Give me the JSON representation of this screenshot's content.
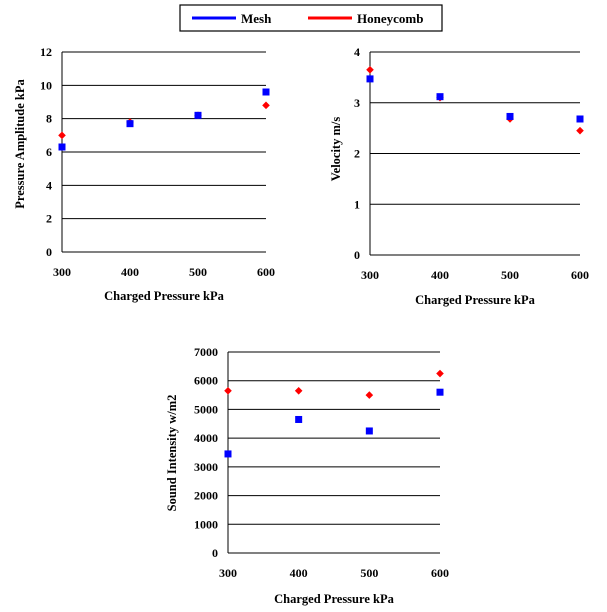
{
  "legend": [
    {
      "name": "Mesh",
      "color": "#0000ff",
      "marker": "square"
    },
    {
      "name": "Honeycomb",
      "color": "#ff0000",
      "marker": "diamond"
    }
  ],
  "chart_data": [
    {
      "type": "scatter",
      "title": "",
      "xlabel": "Charged Pressure kPa",
      "ylabel": "Pressure Amplitude kPa",
      "xlim": [
        300,
        600
      ],
      "ylim": [
        0,
        12
      ],
      "xticks": [
        300,
        400,
        500,
        600
      ],
      "yticks": [
        0,
        2,
        4,
        6,
        8,
        10,
        12
      ],
      "grid": "horizontal",
      "series": [
        {
          "name": "Mesh",
          "x": [
            300,
            400,
            500,
            600
          ],
          "y": [
            6.3,
            7.7,
            8.2,
            9.6
          ]
        },
        {
          "name": "Honeycomb",
          "x": [
            300,
            400,
            500,
            600
          ],
          "y": [
            7.0,
            7.8,
            8.2,
            8.8
          ]
        }
      ]
    },
    {
      "type": "scatter",
      "title": "",
      "xlabel": "Charged Pressure kPa",
      "ylabel": "Velocity m/s",
      "xlim": [
        300,
        600
      ],
      "ylim": [
        0,
        4
      ],
      "xticks": [
        300,
        400,
        500,
        600
      ],
      "yticks": [
        0,
        1,
        2,
        3,
        4
      ],
      "grid": "horizontal",
      "series": [
        {
          "name": "Mesh",
          "x": [
            300,
            400,
            500,
            600
          ],
          "y": [
            3.47,
            3.12,
            2.73,
            2.68
          ]
        },
        {
          "name": "Honeycomb",
          "x": [
            300,
            400,
            500,
            600
          ],
          "y": [
            3.65,
            3.1,
            2.68,
            2.45
          ]
        }
      ]
    },
    {
      "type": "scatter",
      "title": "",
      "xlabel": "Charged Pressure kPa",
      "ylabel": "Sound Intensity w/m2",
      "xlim": [
        300,
        600
      ],
      "ylim": [
        0,
        7000
      ],
      "xticks": [
        300,
        400,
        500,
        600
      ],
      "yticks": [
        0,
        1000,
        2000,
        3000,
        4000,
        5000,
        6000,
        7000
      ],
      "grid": "horizontal",
      "series": [
        {
          "name": "Mesh",
          "x": [
            300,
            400,
            500,
            600
          ],
          "y": [
            3450,
            4650,
            4250,
            5600
          ]
        },
        {
          "name": "Honeycomb",
          "x": [
            300,
            400,
            500,
            600
          ],
          "y": [
            5650,
            5650,
            5500,
            6250
          ]
        }
      ]
    }
  ]
}
